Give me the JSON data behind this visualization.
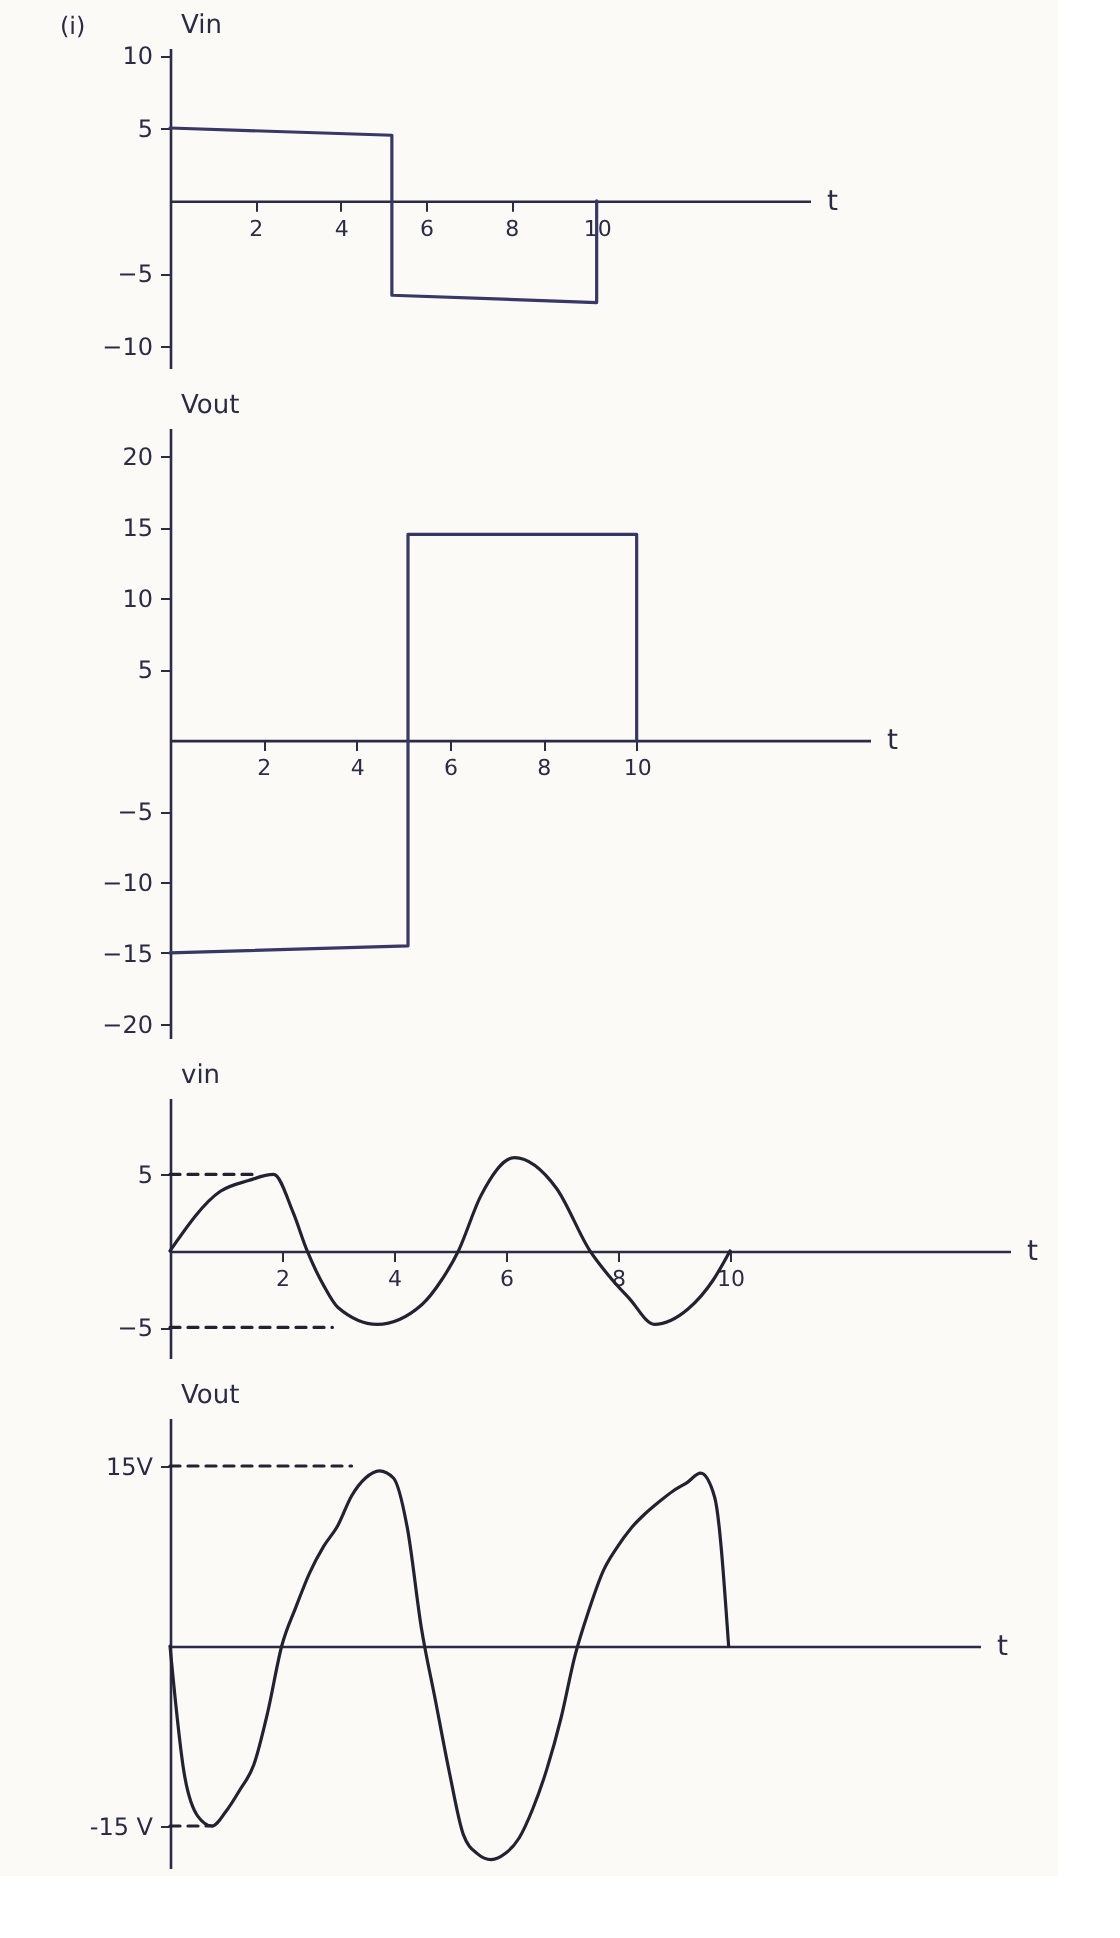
{
  "chart_data": [
    {
      "type": "line",
      "annotations": [
        "(i)"
      ],
      "ylabel": "Vin",
      "xlabel": "t",
      "xlim": [
        0,
        15
      ],
      "xticks": [
        2,
        4,
        6,
        8,
        10
      ],
      "ylim": [
        -11.5,
        10.5
      ],
      "yticks": [
        10,
        5,
        -5,
        -10
      ],
      "series": [
        {
          "color": "#383866",
          "x": [
            0,
            5.2,
            5.2,
            10,
            10
          ],
          "values": [
            5,
            4.5,
            -6.5,
            -7,
            0
          ]
        }
      ]
    },
    {
      "type": "line",
      "ylabel": "Vout",
      "xlabel": "t",
      "xlim": [
        0,
        15
      ],
      "xticks": [
        2,
        4,
        6,
        8,
        10
      ],
      "ylim": [
        -21,
        22
      ],
      "yticks": [
        20,
        15,
        10,
        5,
        -5,
        -10,
        -15,
        -20
      ],
      "series": [
        {
          "color": "#383866",
          "x": [
            0,
            5.1,
            5.1,
            10,
            10
          ],
          "values": [
            -15,
            -14.5,
            14.5,
            14.5,
            0
          ]
        }
      ]
    },
    {
      "type": "line",
      "ylabel": "vin",
      "xlabel": "t",
      "xlim": [
        0,
        15
      ],
      "xticks": [
        2,
        4,
        6,
        8,
        10
      ],
      "ylim": [
        -7,
        10
      ],
      "yticks": [
        5,
        -5
      ],
      "series": [
        {
          "color": "#222230",
          "x": [
            0,
            0.9,
            1.4,
            1.85,
            2.2,
            2.45,
            2.75,
            3.0,
            3.7,
            4.5,
            4.85,
            5.15,
            5.55,
            6.15,
            6.9,
            7.5,
            7.9,
            8.2,
            8.65,
            9.25,
            9.7,
            10
          ],
          "values": [
            0,
            3.9,
            4.6,
            5,
            2.5,
            0,
            -2.3,
            -3.7,
            -4.8,
            -3.5,
            -1.9,
            0,
            3.6,
            6.1,
            4.1,
            0,
            -1.9,
            -3.1,
            -4.8,
            -3.8,
            -1.9,
            0
          ]
        },
        {
          "type": "line",
          "line_style": "dashed",
          "color": "#222230",
          "x": [
            0,
            1.6
          ],
          "values": [
            5,
            5
          ]
        },
        {
          "type": "line",
          "line_style": "dashed",
          "color": "#222230",
          "x": [
            0,
            2.9
          ],
          "values": [
            -5,
            -5
          ]
        }
      ]
    },
    {
      "type": "line",
      "ylabel": "Vout",
      "xlabel": "t",
      "tick_labels": "y",
      "ylim": [
        -18.5,
        19
      ],
      "yticks": [
        {
          "value": 15,
          "label": "15V"
        },
        {
          "value": -15,
          "label": "-15 V"
        }
      ],
      "categories": [
        null,
        null,
        null,
        null,
        null,
        null,
        null,
        null,
        null,
        null,
        null,
        null,
        null,
        null,
        null,
        null,
        null,
        null,
        null,
        null,
        null,
        null,
        null,
        null,
        null,
        null,
        null,
        null,
        null,
        null,
        null,
        null,
        null,
        null,
        null,
        null,
        null,
        null,
        null,
        null,
        null,
        null,
        null,
        null,
        null,
        null,
        null,
        null,
        null,
        null,
        null,
        null,
        null,
        null,
        null,
        null,
        null,
        null,
        null
      ],
      "series": [
        {
          "color": "#222230",
          "values": [
            0,
            -10.5,
            -14.2,
            -15,
            -13.8,
            -12,
            -9.9,
            -5.5,
            0,
            3.2,
            6.1,
            8.3,
            10,
            12.5,
            14,
            14.6,
            14,
            9.8,
            1.5,
            -4.5,
            -10.5,
            -15.7,
            -17.3,
            -17.8,
            -17.3,
            -16,
            -13.5,
            -10.2,
            -6,
            -0.8,
            3,
            6.2,
            8.2,
            9.8,
            11,
            12,
            12.9,
            13.6,
            14.4,
            12.4,
            0,
            null,
            null,
            null,
            null,
            null,
            null,
            null,
            null,
            null,
            null,
            null,
            null,
            null,
            null,
            null,
            null,
            null,
            null
          ]
        },
        {
          "type": "line",
          "line_style": "dashed",
          "color": "#222230",
          "values": [
            15,
            15,
            15,
            15,
            15,
            15,
            15,
            15,
            15,
            15,
            15,
            15,
            15,
            15,
            null,
            null,
            null,
            null,
            null,
            null,
            null,
            null,
            null,
            null,
            null,
            null,
            null,
            null,
            null,
            null,
            null,
            null,
            null,
            null,
            null,
            null,
            null,
            null,
            null,
            null,
            null,
            null,
            null,
            null,
            null,
            null,
            null,
            null,
            null,
            null,
            null,
            null,
            null,
            null,
            null,
            null,
            null,
            null,
            null
          ]
        },
        {
          "type": "line",
          "line_style": "dashed",
          "color": "#222230",
          "values": [
            -15,
            -15,
            -15,
            -15,
            null,
            null,
            null,
            null,
            null,
            null,
            null,
            null,
            null,
            null,
            null,
            null,
            null,
            null,
            null,
            null,
            null,
            null,
            null,
            null,
            null,
            null,
            null,
            null,
            null,
            null,
            null,
            null,
            null,
            null,
            null,
            null,
            null,
            null,
            null,
            null,
            null,
            null,
            null,
            null,
            null,
            null,
            null,
            null,
            null,
            null,
            null,
            null,
            null,
            null,
            null,
            null,
            null,
            null,
            null
          ]
        }
      ]
    }
  ]
}
